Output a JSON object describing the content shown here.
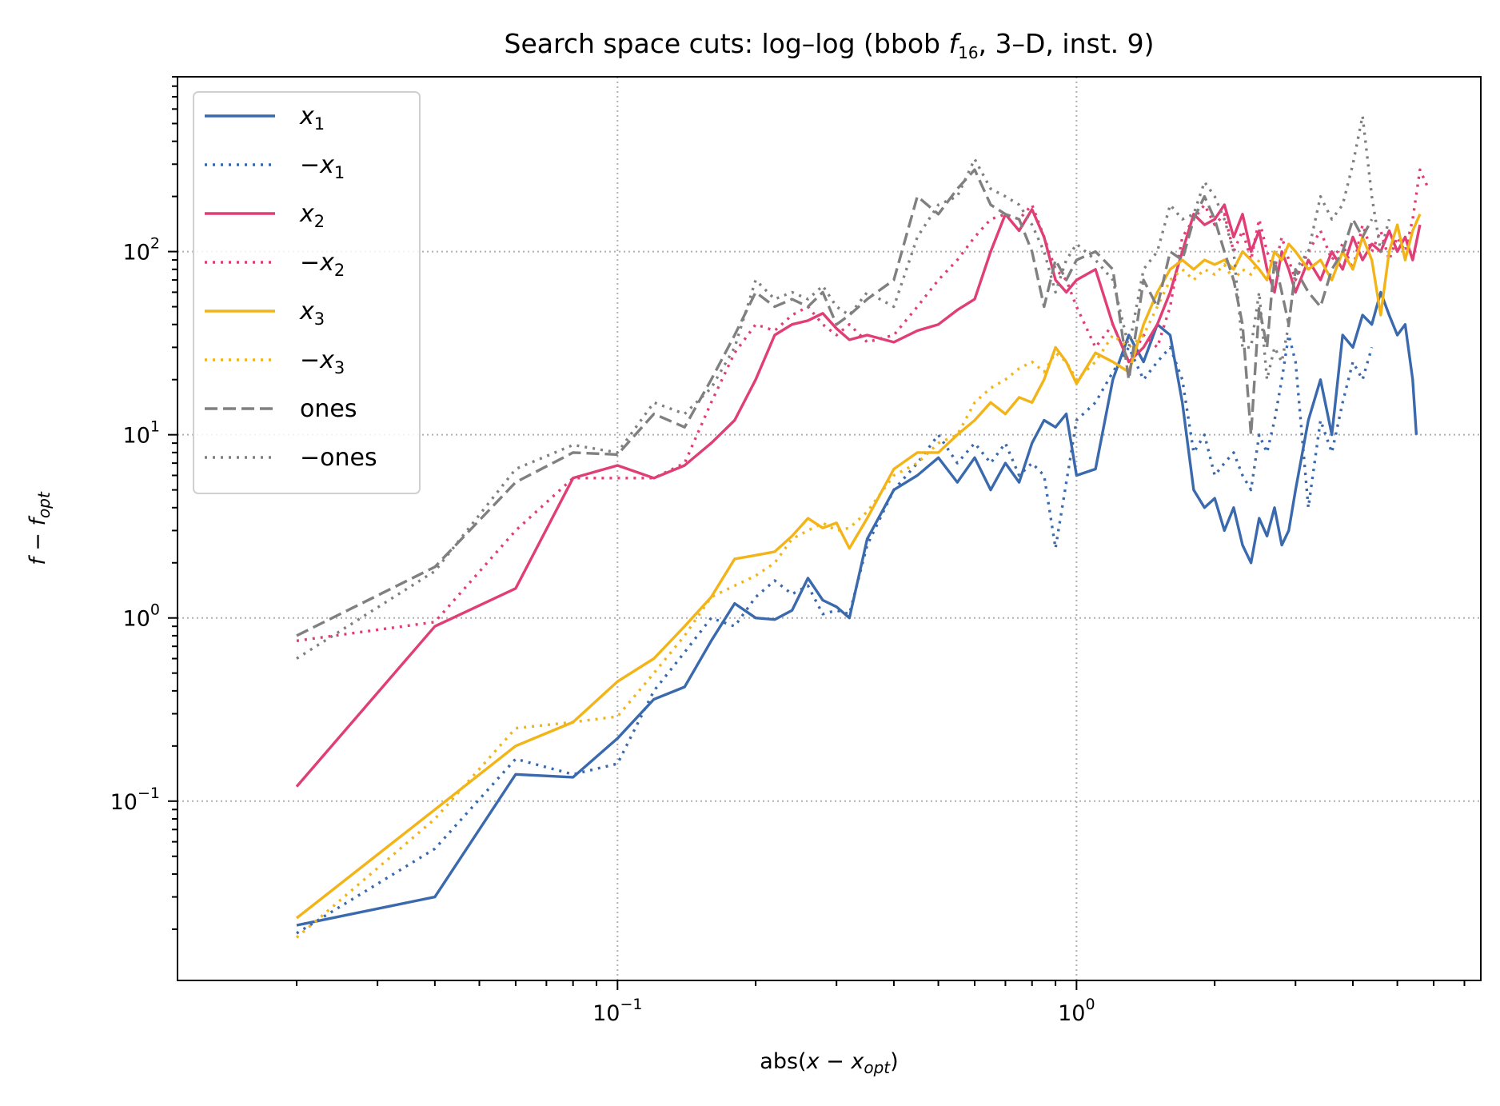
{
  "chart_data": {
    "type": "line",
    "title": "Search space cuts: log–log (bbob f16, 3–D, inst. 9)",
    "title_parts": {
      "prefix": "Search space cuts: log–log (bbob ",
      "f": "f",
      "sub": "16",
      "suffix": ", 3–D, inst. 9)"
    },
    "xlabel": "abs(x − x_opt)",
    "xlabel_parts": {
      "prefix": "abs(",
      "x": "x",
      "minus": " − ",
      "xo": "x",
      "sub": "opt",
      "suffix": ")"
    },
    "ylabel": "f − f_opt",
    "ylabel_parts": {
      "f": "f",
      "minus": " − ",
      "fo": "f",
      "sub": "opt"
    },
    "x_scale": "log",
    "y_scale": "log",
    "xlim": [
      0.011,
      7.6
    ],
    "ylim": [
      0.0105,
      900
    ],
    "x_ticks": [
      {
        "value": 0.1,
        "base": "10",
        "exp": "−1"
      },
      {
        "value": 1,
        "base": "10",
        "exp": "0"
      }
    ],
    "y_ticks": [
      {
        "value": 0.1,
        "base": "10",
        "exp": "−1"
      },
      {
        "value": 1,
        "base": "10",
        "exp": "0"
      },
      {
        "value": 10,
        "base": "10",
        "exp": "1"
      },
      {
        "value": 100,
        "base": "10",
        "exp": "2"
      }
    ],
    "grid": true,
    "legend_position": "top-left",
    "series": [
      {
        "name": "x1",
        "label_main": "x",
        "label_sub": "1",
        "label_prefix": "",
        "color": "#3a6aad",
        "dash": "solid",
        "x": [
          0.02,
          0.04,
          0.06,
          0.08,
          0.1,
          0.12,
          0.14,
          0.16,
          0.18,
          0.2,
          0.22,
          0.24,
          0.26,
          0.28,
          0.3,
          0.32,
          0.35,
          0.4,
          0.45,
          0.5,
          0.55,
          0.6,
          0.65,
          0.7,
          0.75,
          0.8,
          0.85,
          0.9,
          0.95,
          1.0,
          1.1,
          1.2,
          1.3,
          1.4,
          1.5,
          1.6,
          1.7,
          1.8,
          1.9,
          2.0,
          2.1,
          2.2,
          2.3,
          2.4,
          2.5,
          2.6,
          2.7,
          2.8,
          2.9,
          3.0,
          3.2,
          3.4,
          3.6,
          3.8,
          4.0,
          4.2,
          4.4,
          4.6,
          4.8,
          5.0,
          5.2,
          5.4,
          5.5
        ],
        "y": [
          0.021,
          0.03,
          0.14,
          0.135,
          0.22,
          0.36,
          0.42,
          0.75,
          1.2,
          1.0,
          0.98,
          1.1,
          1.65,
          1.25,
          1.15,
          1.0,
          2.7,
          5.0,
          6.0,
          7.5,
          5.5,
          7.5,
          5.0,
          7.0,
          5.5,
          9.0,
          12.0,
          11.0,
          13.0,
          6.0,
          6.5,
          20.0,
          35.0,
          25.0,
          40.0,
          35.0,
          15.0,
          5.0,
          4.0,
          4.5,
          3.0,
          4.0,
          2.5,
          2.0,
          3.5,
          2.8,
          4.0,
          2.5,
          3.0,
          5.0,
          12.0,
          20.0,
          10.0,
          35.0,
          30.0,
          45.0,
          40.0,
          60.0,
          45.0,
          35.0,
          40.0,
          20.0,
          10.0
        ]
      },
      {
        "name": "−x1",
        "label_main": "x",
        "label_sub": "1",
        "label_prefix": "−",
        "color": "#3a6aad",
        "dash": "dotted",
        "x": [
          0.02,
          0.04,
          0.06,
          0.08,
          0.1,
          0.12,
          0.14,
          0.16,
          0.18,
          0.2,
          0.22,
          0.24,
          0.26,
          0.28,
          0.3,
          0.32,
          0.35,
          0.4,
          0.45,
          0.5,
          0.55,
          0.6,
          0.65,
          0.7,
          0.75,
          0.8,
          0.85,
          0.9,
          0.95,
          1.0,
          1.1,
          1.2,
          1.3,
          1.4,
          1.5,
          1.6,
          1.7,
          1.8,
          1.9,
          2.0,
          2.1,
          2.2,
          2.3,
          2.4,
          2.5,
          2.6,
          2.7,
          2.8,
          2.9,
          3.0,
          3.2,
          3.4,
          3.6,
          3.8,
          4.0,
          4.2,
          4.4
        ],
        "y": [
          0.019,
          0.055,
          0.17,
          0.14,
          0.16,
          0.4,
          0.65,
          1.0,
          0.9,
          1.3,
          1.6,
          1.35,
          1.5,
          1.05,
          1.1,
          1.05,
          2.5,
          5.0,
          7.0,
          10.0,
          7.0,
          9.0,
          7.0,
          9.0,
          6.0,
          7.0,
          6.0,
          2.4,
          5.5,
          12.0,
          15.0,
          22.0,
          30.0,
          20.0,
          25.0,
          30.0,
          20.0,
          8.0,
          10.0,
          6.0,
          7.0,
          8.0,
          6.0,
          5.0,
          10.0,
          8.0,
          12.0,
          20.0,
          35.0,
          25.0,
          4.0,
          12.0,
          8.0,
          15.0,
          25.0,
          20.0,
          30.0
        ]
      },
      {
        "name": "x2",
        "label_main": "x",
        "label_sub": "2",
        "label_prefix": "",
        "color": "#e03e76",
        "dash": "solid",
        "x": [
          0.02,
          0.04,
          0.06,
          0.08,
          0.1,
          0.12,
          0.14,
          0.16,
          0.18,
          0.2,
          0.22,
          0.24,
          0.26,
          0.28,
          0.3,
          0.32,
          0.35,
          0.4,
          0.45,
          0.5,
          0.55,
          0.6,
          0.65,
          0.7,
          0.75,
          0.8,
          0.85,
          0.9,
          0.95,
          1.0,
          1.1,
          1.2,
          1.3,
          1.4,
          1.5,
          1.6,
          1.7,
          1.8,
          1.9,
          2.0,
          2.1,
          2.2,
          2.3,
          2.4,
          2.5,
          2.6,
          2.7,
          2.8,
          2.9,
          3.0,
          3.2,
          3.4,
          3.6,
          3.8,
          4.0,
          4.2,
          4.4,
          4.6,
          4.8,
          5.0,
          5.2,
          5.4,
          5.6
        ],
        "y": [
          0.12,
          0.9,
          1.45,
          5.8,
          6.8,
          5.8,
          6.8,
          9.0,
          12.0,
          20.0,
          35.0,
          40.0,
          42.0,
          46.0,
          38.0,
          33.0,
          35.0,
          32.0,
          37.0,
          40.0,
          48.0,
          55.0,
          100.0,
          160.0,
          130.0,
          170.0,
          120.0,
          70.0,
          60.0,
          70.0,
          80.0,
          40.0,
          25.0,
          30.0,
          40.0,
          60.0,
          100.0,
          160.0,
          140.0,
          150.0,
          180.0,
          120.0,
          160.0,
          100.0,
          130.0,
          80.0,
          60.0,
          100.0,
          80.0,
          60.0,
          90.0,
          70.0,
          100.0,
          80.0,
          120.0,
          90.0,
          110.0,
          100.0,
          130.0,
          100.0,
          120.0,
          90.0,
          140.0
        ]
      },
      {
        "name": "−x2",
        "label_main": "x",
        "label_sub": "2",
        "label_prefix": "−",
        "color": "#e03e76",
        "dash": "dotted",
        "x": [
          0.02,
          0.04,
          0.06,
          0.08,
          0.1,
          0.12,
          0.14,
          0.16,
          0.18,
          0.2,
          0.22,
          0.24,
          0.26,
          0.28,
          0.3,
          0.32,
          0.35,
          0.4,
          0.45,
          0.5,
          0.55,
          0.6,
          0.65,
          0.7,
          0.75,
          0.8,
          0.85,
          0.9,
          0.95,
          1.0,
          1.1,
          1.2,
          1.3,
          1.4,
          1.5,
          1.6,
          1.7,
          1.8,
          1.9,
          2.0,
          2.1,
          2.2,
          2.3,
          2.4,
          2.5,
          2.6,
          2.7,
          2.8,
          2.9,
          3.0,
          3.2,
          3.4,
          3.6,
          3.8,
          4.0,
          4.2,
          4.4,
          4.6,
          4.8,
          5.0,
          5.2,
          5.4,
          5.6,
          5.8
        ],
        "y": [
          0.75,
          0.95,
          3.0,
          5.8,
          5.8,
          5.8,
          7.0,
          15.0,
          28.0,
          40.0,
          37.0,
          45.0,
          50.0,
          40.0,
          35.0,
          40.0,
          32.0,
          35.0,
          50.0,
          70.0,
          90.0,
          120.0,
          150.0,
          160.0,
          150.0,
          180.0,
          120.0,
          80.0,
          70.0,
          50.0,
          30.0,
          40.0,
          25.0,
          35.0,
          30.0,
          50.0,
          120.0,
          150.0,
          180.0,
          140.0,
          160.0,
          100.0,
          130.0,
          90.0,
          150.0,
          100.0,
          80.0,
          120.0,
          90.0,
          70.0,
          100.0,
          130.0,
          90.0,
          110.0,
          80.0,
          140.0,
          100.0,
          130.0,
          90.0,
          120.0,
          100.0,
          150.0,
          280.0,
          230.0
        ]
      },
      {
        "name": "x3",
        "label_main": "x",
        "label_sub": "3",
        "label_prefix": "",
        "color": "#f2b418",
        "dash": "solid",
        "x": [
          0.02,
          0.04,
          0.06,
          0.08,
          0.1,
          0.12,
          0.14,
          0.16,
          0.18,
          0.2,
          0.22,
          0.24,
          0.26,
          0.28,
          0.3,
          0.32,
          0.35,
          0.4,
          0.45,
          0.5,
          0.55,
          0.6,
          0.65,
          0.7,
          0.75,
          0.8,
          0.85,
          0.9,
          0.95,
          1.0,
          1.1,
          1.2,
          1.3,
          1.4,
          1.5,
          1.6,
          1.7,
          1.8,
          1.9,
          2.0,
          2.1,
          2.2,
          2.3,
          2.4,
          2.5,
          2.6,
          2.7,
          2.8,
          2.9,
          3.0,
          3.2,
          3.4,
          3.6,
          3.8,
          4.0,
          4.2,
          4.4,
          4.6,
          4.8,
          5.0,
          5.2,
          5.4,
          5.6
        ],
        "y": [
          0.023,
          0.09,
          0.2,
          0.27,
          0.45,
          0.6,
          0.9,
          1.3,
          2.1,
          2.2,
          2.3,
          2.8,
          3.5,
          3.1,
          3.3,
          2.4,
          3.5,
          6.5,
          8.0,
          8.0,
          10.0,
          12.0,
          15.0,
          13.0,
          16.0,
          15.0,
          20.0,
          30.0,
          25.0,
          19.0,
          28.0,
          25.0,
          22.0,
          40.0,
          60.0,
          80.0,
          90.0,
          80.0,
          90.0,
          85.0,
          90.0,
          80.0,
          100.0,
          90.0,
          80.0,
          70.0,
          100.0,
          90.0,
          110.0,
          100.0,
          80.0,
          90.0,
          70.0,
          100.0,
          80.0,
          120.0,
          90.0,
          45.0,
          100.0,
          140.0,
          90.0,
          130.0,
          160.0
        ]
      },
      {
        "name": "−x3",
        "label_main": "x",
        "label_sub": "3",
        "label_prefix": "−",
        "color": "#f2b418",
        "dash": "dotted",
        "x": [
          0.02,
          0.04,
          0.06,
          0.08,
          0.1,
          0.12,
          0.14,
          0.16,
          0.18,
          0.2,
          0.22,
          0.24,
          0.26,
          0.28,
          0.3,
          0.32,
          0.35,
          0.4,
          0.45,
          0.5,
          0.55,
          0.6,
          0.65,
          0.7,
          0.75,
          0.8,
          0.85,
          0.9,
          0.95,
          1.0,
          1.1,
          1.2,
          1.3,
          1.4,
          1.5,
          1.6,
          1.7,
          1.8,
          1.9,
          2.0,
          2.1,
          2.2,
          2.3,
          2.4,
          2.5
        ],
        "y": [
          0.018,
          0.08,
          0.25,
          0.27,
          0.29,
          0.5,
          0.8,
          1.3,
          1.5,
          1.7,
          2.0,
          2.7,
          3.0,
          3.3,
          3.0,
          3.1,
          3.8,
          6.0,
          7.0,
          9.0,
          10.0,
          15.0,
          18.0,
          20.0,
          23.0,
          25.0,
          22.0,
          28.0,
          25.0,
          20.0,
          25.0,
          35.0,
          30.0,
          35.0,
          50.0,
          70.0,
          80.0,
          70.0,
          80.0,
          75.0,
          85.0,
          70.0,
          80.0,
          75.0,
          90.0
        ]
      },
      {
        "name": "ones",
        "label_main": "ones",
        "label_sub": "",
        "label_prefix": "",
        "color": "#808080",
        "dash": "dashed",
        "x": [
          0.02,
          0.04,
          0.06,
          0.08,
          0.1,
          0.12,
          0.14,
          0.16,
          0.18,
          0.2,
          0.22,
          0.24,
          0.26,
          0.28,
          0.3,
          0.32,
          0.35,
          0.4,
          0.45,
          0.5,
          0.55,
          0.6,
          0.65,
          0.7,
          0.75,
          0.8,
          0.85,
          0.9,
          0.95,
          1.0,
          1.1,
          1.2,
          1.3,
          1.4,
          1.5,
          1.6,
          1.7,
          1.8,
          1.9,
          2.0,
          2.1,
          2.2,
          2.3,
          2.4,
          2.5,
          2.6,
          2.7,
          2.8,
          2.9,
          3.0,
          3.2,
          3.4,
          3.6,
          3.8,
          4.0,
          4.2,
          4.4
        ],
        "y": [
          0.8,
          1.9,
          5.5,
          8.0,
          7.8,
          13.0,
          11.0,
          20.0,
          35.0,
          60.0,
          50.0,
          55.0,
          50.0,
          60.0,
          40.0,
          45.0,
          55.0,
          70.0,
          200.0,
          160.0,
          220.0,
          280.0,
          180.0,
          160.0,
          150.0,
          100.0,
          50.0,
          90.0,
          70.0,
          90.0,
          100.0,
          80.0,
          20.0,
          70.0,
          50.0,
          100.0,
          90.0,
          150.0,
          200.0,
          150.0,
          100.0,
          70.0,
          40.0,
          10.0,
          50.0,
          30.0,
          90.0,
          60.0,
          40.0,
          80.0,
          60.0,
          50.0,
          80.0,
          100.0,
          150.0,
          120.0,
          150.0
        ]
      },
      {
        "name": "−ones",
        "label_main": "ones",
        "label_sub": "",
        "label_prefix": "−",
        "color": "#808080",
        "dash": "dotted",
        "x": [
          0.02,
          0.04,
          0.06,
          0.08,
          0.1,
          0.12,
          0.14,
          0.16,
          0.18,
          0.2,
          0.22,
          0.24,
          0.26,
          0.28,
          0.3,
          0.32,
          0.35,
          0.4,
          0.45,
          0.5,
          0.55,
          0.6,
          0.65,
          0.7,
          0.75,
          0.8,
          0.85,
          0.9,
          0.95,
          1.0,
          1.1,
          1.2,
          1.3,
          1.4,
          1.5,
          1.6,
          1.7,
          1.8,
          1.9,
          2.0,
          2.1,
          2.2,
          2.3,
          2.4,
          2.5,
          2.6,
          2.7,
          2.8,
          2.9,
          3.0,
          3.2,
          3.4,
          3.6,
          3.8,
          4.0,
          4.2,
          4.4,
          4.6,
          4.8
        ],
        "y": [
          0.6,
          1.8,
          6.5,
          8.8,
          8.0,
          15.0,
          13.0,
          18.0,
          30.0,
          70.0,
          55.0,
          60.0,
          55.0,
          65.0,
          50.0,
          45.0,
          60.0,
          50.0,
          120.0,
          180.0,
          200.0,
          320.0,
          220.0,
          200.0,
          180.0,
          140.0,
          100.0,
          60.0,
          90.0,
          110.0,
          90.0,
          70.0,
          30.0,
          80.0,
          100.0,
          180.0,
          150.0,
          160.0,
          240.0,
          200.0,
          150.0,
          100.0,
          30.0,
          30.0,
          60.0,
          20.0,
          30.0,
          25.0,
          40.0,
          80.0,
          100.0,
          200.0,
          150.0,
          180.0,
          300.0,
          550.0,
          200.0,
          100.0,
          150.0
        ]
      }
    ]
  }
}
